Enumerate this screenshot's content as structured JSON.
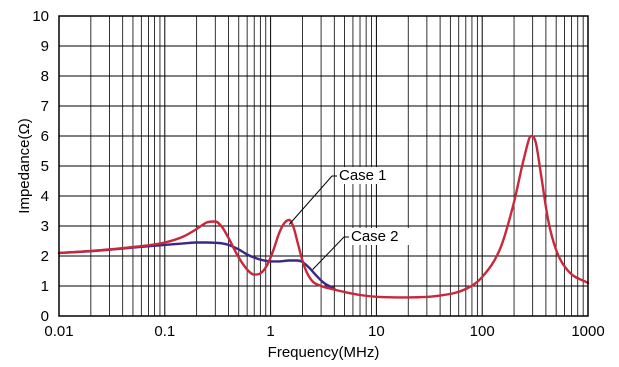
{
  "chart_data": {
    "type": "line",
    "title": "",
    "xlabel": "Frequency(MHz)",
    "ylabel": "Impedance(Ω)",
    "x_scale": "log",
    "xlim": [
      0.01,
      1000
    ],
    "ylim": [
      0,
      10
    ],
    "grid": true,
    "x_ticks": [
      0.01,
      0.1,
      1,
      10,
      100,
      1000
    ],
    "x_tick_labels": [
      "0.01",
      "0.1",
      "1",
      "10",
      "100",
      "1000"
    ],
    "y_ticks": [
      0,
      1,
      2,
      3,
      4,
      5,
      6,
      7,
      8,
      9,
      10
    ],
    "y_tick_labels": [
      "0",
      "1",
      "2",
      "3",
      "4",
      "5",
      "6",
      "7",
      "8",
      "9",
      "10"
    ],
    "series": [
      {
        "name": "Case 1",
        "color": "#c8283c",
        "x": [
          0.01,
          0.02,
          0.05,
          0.1,
          0.15,
          0.2,
          0.25,
          0.3,
          0.35,
          0.4,
          0.5,
          0.6,
          0.7,
          0.8,
          0.9,
          1.0,
          1.1,
          1.2,
          1.35,
          1.5,
          1.65,
          1.8,
          2.0,
          2.2,
          2.5,
          3.0,
          3.5,
          4.0,
          5.0,
          7.0,
          10,
          20,
          40,
          70,
          100,
          150,
          200,
          250,
          290,
          320,
          360,
          420,
          500,
          650,
          1000
        ],
        "y": [
          2.1,
          2.17,
          2.3,
          2.45,
          2.65,
          2.9,
          3.12,
          3.15,
          2.95,
          2.6,
          1.95,
          1.55,
          1.38,
          1.42,
          1.62,
          1.95,
          2.35,
          2.75,
          3.1,
          3.2,
          2.95,
          2.45,
          1.85,
          1.45,
          1.15,
          1.0,
          0.93,
          0.88,
          0.8,
          0.7,
          0.64,
          0.62,
          0.68,
          0.9,
          1.3,
          2.3,
          3.8,
          5.3,
          6.0,
          5.8,
          4.7,
          3.2,
          2.2,
          1.5,
          1.1
        ]
      },
      {
        "name": "Case 2",
        "color": "#3c2882",
        "x": [
          0.01,
          0.02,
          0.05,
          0.1,
          0.15,
          0.2,
          0.25,
          0.3,
          0.35,
          0.4,
          0.5,
          0.6,
          0.7,
          0.8,
          1.0,
          1.2,
          1.5,
          1.8,
          2.0,
          2.3,
          2.7,
          3.2,
          4.0
        ],
        "y": [
          2.1,
          2.16,
          2.28,
          2.37,
          2.42,
          2.45,
          2.45,
          2.44,
          2.42,
          2.37,
          2.22,
          2.05,
          1.95,
          1.88,
          1.82,
          1.82,
          1.85,
          1.85,
          1.8,
          1.62,
          1.35,
          1.1,
          0.92
        ]
      }
    ],
    "annotations": [
      {
        "text": "Case 1",
        "points_to": {
          "x": 1.5,
          "y": 3.05
        }
      },
      {
        "text": "Case 2",
        "points_to": {
          "x": 2.5,
          "y": 1.55
        }
      }
    ]
  }
}
